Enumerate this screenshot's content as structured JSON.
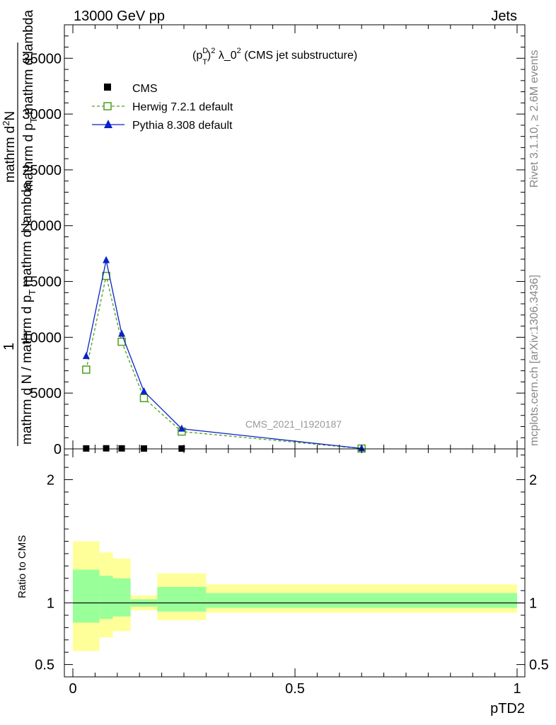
{
  "header": {
    "left": "13000 GeV pp",
    "right": "Jets"
  },
  "side_labels": {
    "rivet": "Rivet 3.1.10, ≥ 2.6M events",
    "mcplots": "mcplots.cern.ch [arXiv:1306.3436]"
  },
  "watermark": "CMS_2021_I1920187",
  "chart_data": [
    {
      "type": "line",
      "title": "(p_T^D)^2 λ_0^2 (CMS jet substructure)",
      "title_parts": {
        "open": "(p",
        "sup1": "D",
        "sub1": "T",
        "close": ")",
        "sup2": "2",
        "lambda": " λ_0",
        "sup3": "2",
        "rest": " (CMS jet substructure)"
      },
      "ylabel_lines": [
        "1",
        "mathrm d N / mathrm d p_T mathrm d lambda"
      ],
      "ylabel_parts": {
        "top": "mathrm d",
        "top_sup": "2",
        "top_end": "N",
        "bottom": "mathrm d p",
        "bottom_sub": "T",
        "bottom_end": "mathrm d lambda",
        "frac_left": "mathrm d N / mathrm d p",
        "frac_left_sub": "T",
        "frac_right": "mathrm d lambda",
        "one": "1"
      },
      "xlim": [
        0,
        1
      ],
      "ylim": [
        0,
        38000
      ],
      "y_ticks": [
        0,
        5000,
        10000,
        15000,
        20000,
        25000,
        30000,
        35000
      ],
      "y_tick_labels": [
        "0",
        "5000",
        "10000",
        "15000",
        "20000",
        "25000",
        "30000",
        "35000"
      ],
      "legend_position": "top-left",
      "series": [
        {
          "name": "CMS",
          "color": "#000000",
          "marker": "square-filled",
          "x": [
            0.03,
            0.075,
            0.11,
            0.16,
            0.245,
            0.65
          ],
          "y": [
            40,
            50,
            45,
            35,
            30,
            5
          ]
        },
        {
          "name": "Herwig 7.2.1 default",
          "color": "#4d9f1a",
          "marker": "square-open",
          "dash": true,
          "x": [
            0.03,
            0.075,
            0.11,
            0.16,
            0.245,
            0.65
          ],
          "y": [
            7100,
            15500,
            9600,
            4550,
            1550,
            30
          ]
        },
        {
          "name": "Pythia 8.308 default",
          "color": "#0a22c8",
          "marker": "triangle-filled",
          "dash": false,
          "x": [
            0.03,
            0.075,
            0.11,
            0.16,
            0.245,
            0.65
          ],
          "y": [
            8300,
            16900,
            10300,
            5150,
            1800,
            40
          ]
        }
      ]
    },
    {
      "type": "area",
      "ylabel": "Ratio to CMS",
      "xlabel": "pTD2",
      "xlim": [
        0,
        1
      ],
      "ylim": [
        0.4,
        2.25
      ],
      "x_ticks": [
        0,
        0.5,
        1
      ],
      "x_tick_labels": [
        "0",
        "0.5",
        "1"
      ],
      "y_ticks": [
        0.5,
        1,
        2
      ],
      "y_tick_labels": [
        "0.5",
        "1",
        "2"
      ],
      "reference_line": 1,
      "bands": [
        {
          "x0": 0.0,
          "x1": 0.06,
          "inner": [
            0.84,
            1.27
          ],
          "outer": [
            0.61,
            1.5
          ]
        },
        {
          "x0": 0.06,
          "x1": 0.09,
          "inner": [
            0.87,
            1.22
          ],
          "outer": [
            0.72,
            1.41
          ]
        },
        {
          "x0": 0.09,
          "x1": 0.13,
          "inner": [
            0.89,
            1.2
          ],
          "outer": [
            0.77,
            1.36
          ]
        },
        {
          "x0": 0.13,
          "x1": 0.19,
          "inner": [
            0.97,
            1.03
          ],
          "outer": [
            0.94,
            1.06
          ]
        },
        {
          "x0": 0.19,
          "x1": 0.3,
          "inner": [
            0.93,
            1.13
          ],
          "outer": [
            0.86,
            1.24
          ]
        },
        {
          "x0": 0.3,
          "x1": 1.0,
          "inner": [
            0.96,
            1.08
          ],
          "outer": [
            0.92,
            1.15
          ]
        }
      ],
      "colors": {
        "inner": "#99ff99",
        "outer": "#ffff99"
      }
    }
  ]
}
